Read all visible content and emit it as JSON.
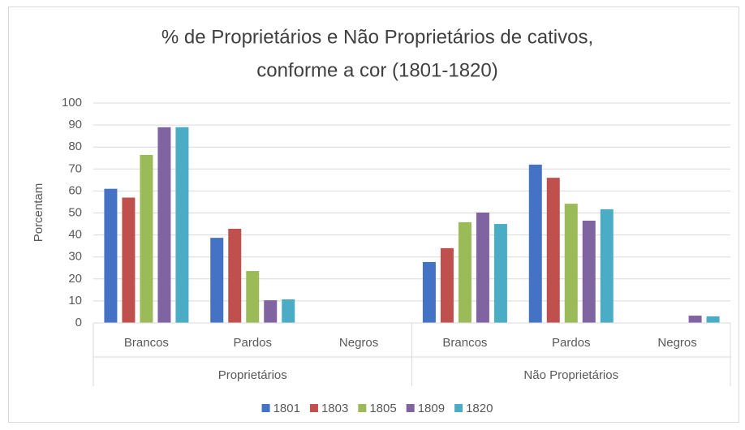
{
  "chart_data": {
    "type": "bar",
    "title": [
      "% de Proprietários e Não Proprietários de cativos,",
      "conforme a cor (1801-1820)"
    ],
    "y_label": "Porcentam",
    "groups": [
      {
        "name": "Proprietários",
        "categories": [
          "Brancos",
          "Pardos",
          "Negros"
        ]
      },
      {
        "name": "Não Proprietários",
        "categories": [
          "Brancos",
          "Pardos",
          "Negros"
        ]
      }
    ],
    "series": [
      {
        "name": "1801",
        "color": "#4472c4",
        "values": [
          61,
          38.7,
          0,
          27.7,
          72,
          0
        ]
      },
      {
        "name": "1803",
        "color": "#c0504d",
        "values": [
          57,
          42.8,
          0,
          34,
          66,
          0
        ]
      },
      {
        "name": "1805",
        "color": "#9bbb59",
        "values": [
          76.4,
          23.6,
          0,
          45.8,
          54.2,
          0
        ]
      },
      {
        "name": "1809",
        "color": "#8064a2",
        "values": [
          89,
          10.3,
          0,
          50.2,
          46.5,
          3.3
        ]
      },
      {
        "name": "1820",
        "color": "#4bacc6",
        "values": [
          89,
          10.7,
          0,
          45,
          51.7,
          3
        ]
      }
    ],
    "ylim": [
      0,
      100
    ],
    "yticks": [
      0,
      10,
      20,
      30,
      40,
      50,
      60,
      70,
      80,
      90,
      100
    ],
    "grid": true,
    "legend": "bottom"
  }
}
